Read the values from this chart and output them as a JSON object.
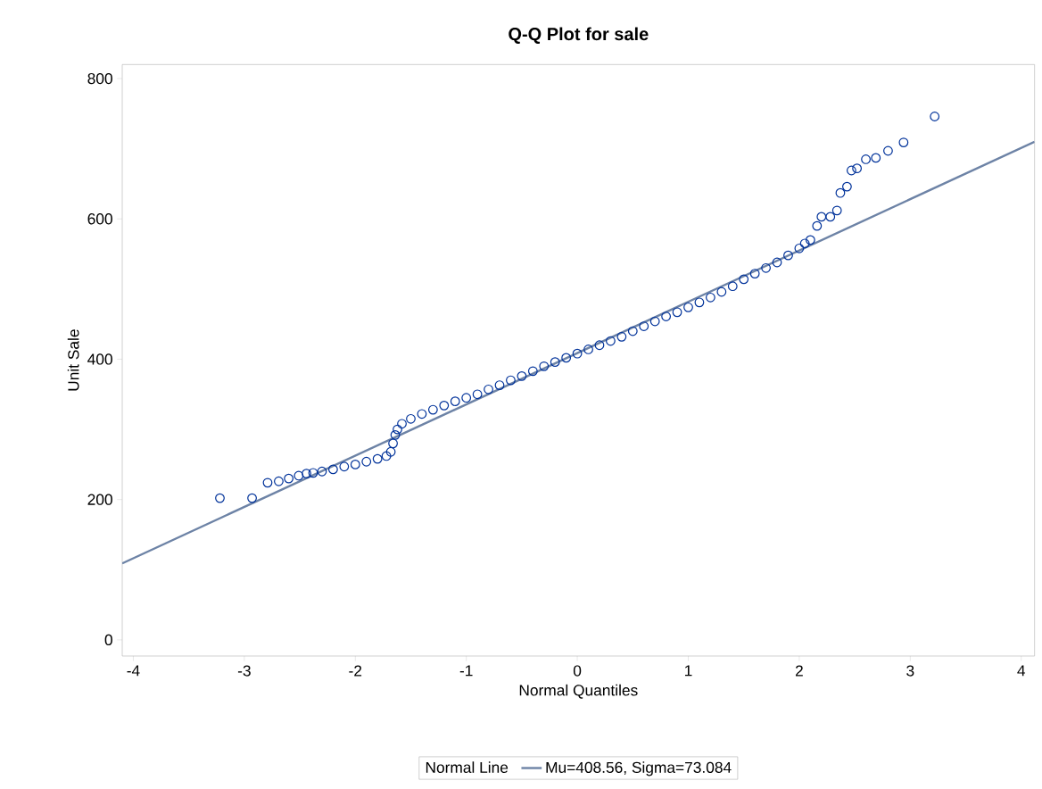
{
  "chart_data": {
    "type": "scatter",
    "title": "Q-Q Plot for sale",
    "xlabel": "Normal Quantiles",
    "ylabel": "Unit Sale",
    "xlim": [
      -4.1,
      4.12
    ],
    "ylim": [
      -23,
      820
    ],
    "xticks": [
      -4,
      -3,
      -2,
      -1,
      0,
      1,
      2,
      3,
      4
    ],
    "yticks": [
      0,
      200,
      400,
      600,
      800
    ],
    "grid": false,
    "legend": "bottom",
    "legend_title": "Normal Line",
    "series": [
      {
        "color": "#00329a",
        "marker": "circle",
        "x": [
          -3.22,
          -2.93,
          -2.79,
          -2.69,
          -2.6,
          -2.51,
          -2.44,
          -2.38,
          -2.3,
          -2.2,
          -2.1,
          -2.0,
          -1.9,
          -1.8,
          -1.72,
          -1.68,
          -1.66,
          -1.64,
          -1.62,
          -1.58,
          -1.5,
          -1.4,
          -1.3,
          -1.2,
          -1.1,
          -1.0,
          -0.9,
          -0.8,
          -0.7,
          -0.6,
          -0.5,
          -0.4,
          -0.3,
          -0.2,
          -0.1,
          0,
          0.1,
          0.2,
          0.3,
          0.4,
          0.5,
          0.6,
          0.7,
          0.8,
          0.9,
          1.0,
          1.1,
          1.2,
          1.3,
          1.4,
          1.5,
          1.6,
          1.7,
          1.8,
          1.9,
          2.0,
          2.05,
          2.1,
          2.16,
          2.2,
          2.28,
          2.34,
          2.37,
          2.43,
          2.47,
          2.52,
          2.6,
          2.69,
          2.8,
          2.94,
          3.22
        ],
        "values": [
          202,
          202,
          224,
          226,
          230,
          234,
          237,
          238,
          240,
          243,
          247,
          250,
          254,
          258,
          262,
          268,
          280,
          292,
          300,
          308,
          315,
          322,
          328,
          334,
          340,
          345,
          350,
          357,
          363,
          370,
          376,
          383,
          390,
          396,
          402,
          408,
          414,
          420,
          426,
          432,
          440,
          447,
          454,
          461,
          467,
          474,
          481,
          488,
          496,
          504,
          514,
          522,
          530,
          538,
          548,
          558,
          565,
          570,
          590,
          603,
          603,
          612,
          637,
          646,
          669,
          672,
          685,
          687,
          697,
          709,
          746
        ]
      },
      {
        "type": "line",
        "name": "Mu=408.56, Sigma=73.084",
        "color": "#6d83a6",
        "line_style": "solid",
        "x": [
          -4.1,
          4.12
        ],
        "values": [
          109,
          710
        ]
      }
    ]
  }
}
